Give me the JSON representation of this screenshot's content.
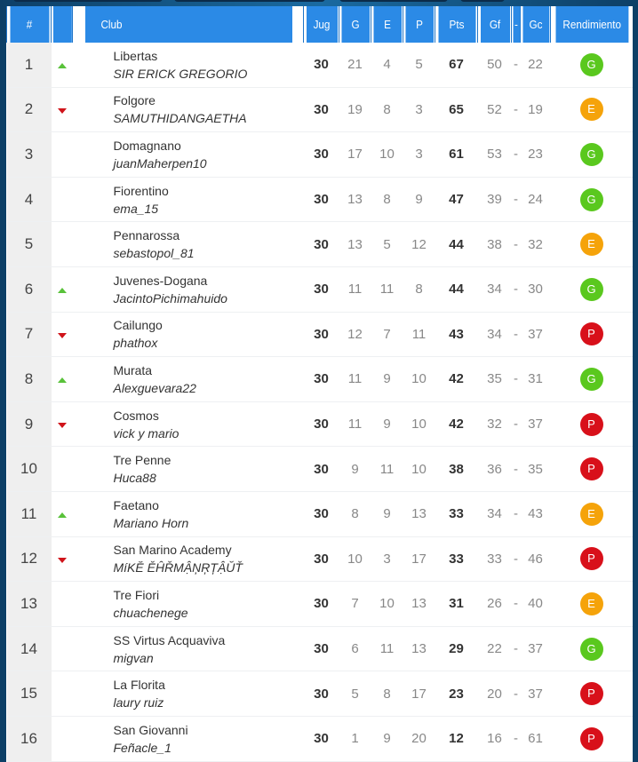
{
  "colors": {
    "header": "#2b8ae6",
    "G": "#5ac81e",
    "E": "#f5a30a",
    "P": "#d8101a",
    "up": "#59c23a",
    "down": "#d0141a"
  },
  "headers": {
    "rank": "#",
    "club": "Club",
    "jug": "Jug",
    "g": "G",
    "e": "E",
    "p": "P",
    "pts": "Pts",
    "gf": "Gf",
    "sep": "-",
    "gc": "Gc",
    "rend": "Rendimiento"
  },
  "rows": [
    {
      "rank": "1",
      "trend": "up",
      "club": "Libertas",
      "manager": "SIR ERICK GREGORIO",
      "jug": "30",
      "g": "21",
      "e": "4",
      "p": "5",
      "pts": "67",
      "gf": "50",
      "gc": "22",
      "rend": "G"
    },
    {
      "rank": "2",
      "trend": "down",
      "club": "Folgore",
      "manager": "SAMUTHIDANGAETHA",
      "jug": "30",
      "g": "19",
      "e": "8",
      "p": "3",
      "pts": "65",
      "gf": "52",
      "gc": "19",
      "rend": "E"
    },
    {
      "rank": "3",
      "trend": "",
      "club": "Domagnano",
      "manager": "juanMaherpen10",
      "jug": "30",
      "g": "17",
      "e": "10",
      "p": "3",
      "pts": "61",
      "gf": "53",
      "gc": "23",
      "rend": "G"
    },
    {
      "rank": "4",
      "trend": "",
      "club": "Fiorentino",
      "manager": "ema_15",
      "jug": "30",
      "g": "13",
      "e": "8",
      "p": "9",
      "pts": "47",
      "gf": "39",
      "gc": "24",
      "rend": "G"
    },
    {
      "rank": "5",
      "trend": "",
      "club": "Pennarossa",
      "manager": "sebastopol_81",
      "jug": "30",
      "g": "13",
      "e": "5",
      "p": "12",
      "pts": "44",
      "gf": "38",
      "gc": "32",
      "rend": "E"
    },
    {
      "rank": "6",
      "trend": "up",
      "club": "Juvenes-Dogana",
      "manager": "JacintoPichimahuido",
      "jug": "30",
      "g": "11",
      "e": "11",
      "p": "8",
      "pts": "44",
      "gf": "34",
      "gc": "30",
      "rend": "G"
    },
    {
      "rank": "7",
      "trend": "down",
      "club": "Cailungo",
      "manager": "phathox",
      "jug": "30",
      "g": "12",
      "e": "7",
      "p": "11",
      "pts": "43",
      "gf": "34",
      "gc": "37",
      "rend": "P"
    },
    {
      "rank": "8",
      "trend": "up",
      "club": "Murata",
      "manager": "Alexguevara22",
      "jug": "30",
      "g": "11",
      "e": "9",
      "p": "10",
      "pts": "42",
      "gf": "35",
      "gc": "31",
      "rend": "G"
    },
    {
      "rank": "9",
      "trend": "down",
      "club": "Cosmos",
      "manager": "vick y mario",
      "jug": "30",
      "g": "11",
      "e": "9",
      "p": "10",
      "pts": "42",
      "gf": "32",
      "gc": "37",
      "rend": "P"
    },
    {
      "rank": "10",
      "trend": "",
      "club": "Tre Penne",
      "manager": "Huca88",
      "jug": "30",
      "g": "9",
      "e": "11",
      "p": "10",
      "pts": "38",
      "gf": "36",
      "gc": "35",
      "rend": "P"
    },
    {
      "rank": "11",
      "trend": "up",
      "club": "Faetano",
      "manager": "Mariano Horn",
      "jug": "30",
      "g": "8",
      "e": "9",
      "p": "13",
      "pts": "33",
      "gf": "34",
      "gc": "43",
      "rend": "E"
    },
    {
      "rank": "12",
      "trend": "down",
      "club": "San Marino Academy",
      "manager": "MíKĔ ĚĤŘMẬŅŖȚẬŬŤ",
      "jug": "30",
      "g": "10",
      "e": "3",
      "p": "17",
      "pts": "33",
      "gf": "33",
      "gc": "46",
      "rend": "P"
    },
    {
      "rank": "13",
      "trend": "",
      "club": "Tre Fiori",
      "manager": "chuachenege",
      "jug": "30",
      "g": "7",
      "e": "10",
      "p": "13",
      "pts": "31",
      "gf": "26",
      "gc": "40",
      "rend": "E"
    },
    {
      "rank": "14",
      "trend": "",
      "club": "SS Virtus Acquaviva",
      "manager": "migvan",
      "jug": "30",
      "g": "6",
      "e": "11",
      "p": "13",
      "pts": "29",
      "gf": "22",
      "gc": "37",
      "rend": "G"
    },
    {
      "rank": "15",
      "trend": "",
      "club": "La Florita",
      "manager": "laury ruiz",
      "jug": "30",
      "g": "5",
      "e": "8",
      "p": "17",
      "pts": "23",
      "gf": "20",
      "gc": "37",
      "rend": "P"
    },
    {
      "rank": "16",
      "trend": "",
      "club": "San Giovanni",
      "manager": "Feñacle_1",
      "jug": "30",
      "g": "1",
      "e": "9",
      "p": "20",
      "pts": "12",
      "gf": "16",
      "gc": "61",
      "rend": "P"
    }
  ]
}
